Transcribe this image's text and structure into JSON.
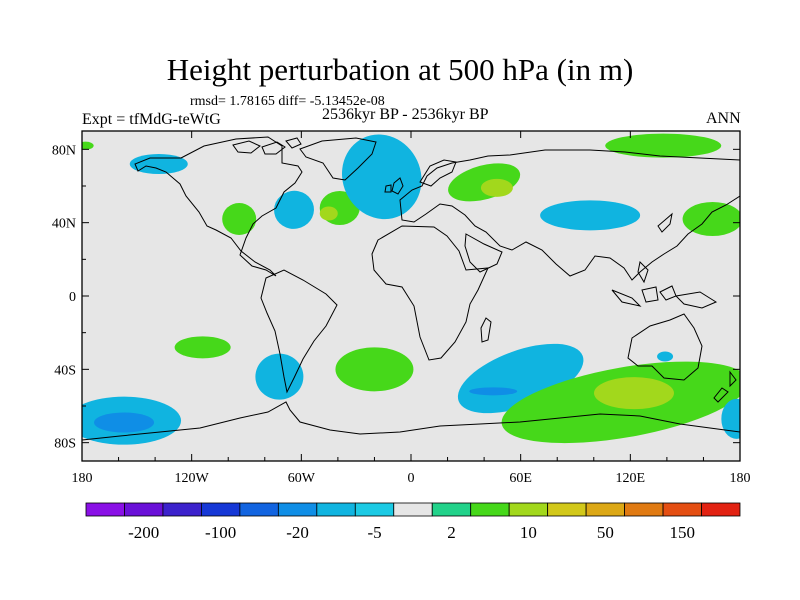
{
  "chart_data": {
    "type": "heatmap",
    "title": "Height perturbation at 500 hPa (in m)",
    "stats_text": "rmsd= 1.78165  diff= -5.13452e-08",
    "left_string": "Expt = tfMdG-teWtG",
    "center_string": "2536kyr BP - 2536kyr BP",
    "right_string": "ANN",
    "x_ticks": [
      "180",
      "120W",
      "60W",
      "0",
      "60E",
      "120E",
      "180"
    ],
    "x_tick_values": [
      -180,
      -120,
      -60,
      0,
      60,
      120,
      180
    ],
    "y_ticks": [
      "80N",
      "40N",
      "0",
      "40S",
      "80S"
    ],
    "y_tick_values": [
      80,
      40,
      0,
      -40,
      -80
    ],
    "xlim": [
      -180,
      180
    ],
    "ylim": [
      -90,
      90
    ],
    "colorbar": {
      "colors": [
        "#8a10e6",
        "#6a10d8",
        "#3c22cc",
        "#1638d6",
        "#1264e0",
        "#0f8ee6",
        "#10b4e0",
        "#1ccae4",
        "#e6e6e6",
        "#22d28a",
        "#46d81a",
        "#a2d81c",
        "#d2c81a",
        "#dca816",
        "#e07a12",
        "#e44e12",
        "#e22212"
      ],
      "labels": [
        "-200",
        "-100",
        "-20",
        "-5",
        "2",
        "10",
        "50",
        "150"
      ]
    },
    "anomalies": [
      {
        "lon": -138,
        "lat": 72,
        "value": -8
      },
      {
        "lon": -94,
        "lat": 42,
        "value": 6
      },
      {
        "lon": -64,
        "lat": 47,
        "value": -8
      },
      {
        "lon": -39,
        "lat": 48,
        "value": 6
      },
      {
        "lon": -45,
        "lat": 45,
        "value": 10
      },
      {
        "lon": -16,
        "lat": 65,
        "value": -8
      },
      {
        "lon": 40,
        "lat": 62,
        "value": 6
      },
      {
        "lon": 47,
        "lat": 59,
        "value": 10
      },
      {
        "lon": 98,
        "lat": 44,
        "value": -8
      },
      {
        "lon": 165,
        "lat": 42,
        "value": 6
      },
      {
        "lon": 138,
        "lat": 82,
        "value": 6
      },
      {
        "lon": -178,
        "lat": 82,
        "value": 6
      },
      {
        "lon": -114,
        "lat": -28,
        "value": 6
      },
      {
        "lon": -72,
        "lat": -44,
        "value": -8
      },
      {
        "lon": -20,
        "lat": -40,
        "value": 6
      },
      {
        "lon": 60,
        "lat": -45,
        "value": -8
      },
      {
        "lon": 45,
        "lat": -52,
        "value": -20
      },
      {
        "lon": 139,
        "lat": -33,
        "value": -8
      },
      {
        "lon": 117,
        "lat": -58,
        "value": 6
      },
      {
        "lon": 122,
        "lat": -53,
        "value": 10
      },
      {
        "lon": -157,
        "lat": -68,
        "value": -8
      },
      {
        "lon": -157,
        "lat": -69,
        "value": -20
      },
      {
        "lon": 178,
        "lat": -67,
        "value": -8
      }
    ]
  }
}
